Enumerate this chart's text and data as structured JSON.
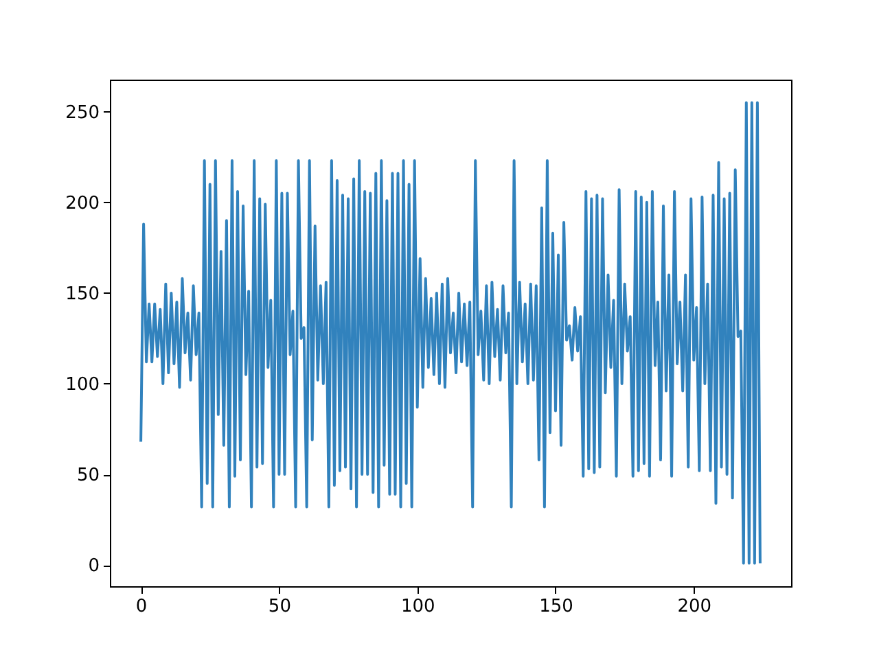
{
  "chart_data": {
    "type": "line",
    "color": "#3182bd",
    "marker": "none",
    "line_style": "solid",
    "xlim": [
      -11.2,
      235.2
    ],
    "ylim": [
      -11.7,
      267.7
    ],
    "xticks": [
      0,
      50,
      100,
      150,
      200
    ],
    "yticks": [
      0,
      50,
      100,
      150,
      200,
      250
    ],
    "x": [
      0,
      1,
      2,
      3,
      4,
      5,
      6,
      7,
      8,
      9,
      10,
      11,
      12,
      13,
      14,
      15,
      16,
      17,
      18,
      19,
      20,
      21,
      22,
      23,
      24,
      25,
      26,
      27,
      28,
      29,
      30,
      31,
      32,
      33,
      34,
      35,
      36,
      37,
      38,
      39,
      40,
      41,
      42,
      43,
      44,
      45,
      46,
      47,
      48,
      49,
      50,
      51,
      52,
      53,
      54,
      55,
      56,
      57,
      58,
      59,
      60,
      61,
      62,
      63,
      64,
      65,
      66,
      67,
      68,
      69,
      70,
      71,
      72,
      73,
      74,
      75,
      76,
      77,
      78,
      79,
      80,
      81,
      82,
      83,
      84,
      85,
      86,
      87,
      88,
      89,
      90,
      91,
      92,
      93,
      94,
      95,
      96,
      97,
      98,
      99,
      100,
      101,
      102,
      103,
      104,
      105,
      106,
      107,
      108,
      109,
      110,
      111,
      112,
      113,
      114,
      115,
      116,
      117,
      118,
      119,
      120,
      121,
      122,
      123,
      124,
      125,
      126,
      127,
      128,
      129,
      130,
      131,
      132,
      133,
      134,
      135,
      136,
      137,
      138,
      139,
      140,
      141,
      142,
      143,
      144,
      145,
      146,
      147,
      148,
      149,
      150,
      151,
      152,
      153,
      154,
      155,
      156,
      157,
      158,
      159,
      160,
      161,
      162,
      163,
      164,
      165,
      166,
      167,
      168,
      169,
      170,
      171,
      172,
      173,
      174,
      175,
      176,
      177,
      178,
      179,
      180,
      181,
      182,
      183,
      184,
      185,
      186,
      187,
      188,
      189,
      190,
      191,
      192,
      193,
      194,
      195,
      196,
      197,
      198,
      199,
      200,
      201,
      202,
      203,
      204,
      205,
      206,
      207,
      208,
      209,
      210,
      211,
      212,
      213,
      214,
      215,
      216,
      217,
      218,
      219,
      220,
      221,
      222,
      223,
      224
    ],
    "values": [
      68,
      188,
      112,
      144,
      112,
      144,
      115,
      141,
      100,
      155,
      106,
      150,
      111,
      145,
      98,
      158,
      117,
      139,
      102,
      154,
      116,
      139,
      32,
      223,
      45,
      210,
      32,
      223,
      83,
      173,
      66,
      190,
      32,
      223,
      49,
      206,
      58,
      198,
      105,
      151,
      32,
      223,
      54,
      202,
      56,
      199,
      109,
      146,
      32,
      223,
      50,
      205,
      50,
      205,
      116,
      140,
      32,
      223,
      125,
      131,
      32,
      223,
      69,
      187,
      102,
      154,
      100,
      156,
      32,
      223,
      44,
      212,
      52,
      204,
      54,
      202,
      42,
      213,
      32,
      223,
      50,
      206,
      50,
      205,
      40,
      216,
      32,
      223,
      55,
      201,
      39,
      216,
      39,
      216,
      32,
      223,
      45,
      210,
      32,
      223,
      87,
      169,
      98,
      158,
      109,
      147,
      105,
      150,
      100,
      155,
      98,
      158,
      117,
      139,
      106,
      150,
      112,
      144,
      110,
      145,
      32,
      223,
      116,
      140,
      102,
      154,
      100,
      156,
      115,
      141,
      102,
      154,
      117,
      139,
      32,
      223,
      100,
      156,
      112,
      144,
      100,
      155,
      102,
      154,
      58,
      197,
      32,
      223,
      73,
      183,
      85,
      171,
      66,
      189,
      124,
      132,
      113,
      142,
      118,
      137,
      49,
      206,
      53,
      202,
      51,
      204,
      54,
      202,
      95,
      160,
      109,
      146,
      49,
      207,
      100,
      155,
      118,
      137,
      49,
      206,
      52,
      203,
      56,
      200,
      49,
      206,
      110,
      145,
      58,
      198,
      96,
      160,
      49,
      206,
      111,
      145,
      96,
      160,
      54,
      202,
      113,
      142,
      52,
      203,
      100,
      155,
      52,
      204,
      34,
      222,
      54,
      202,
      50,
      205,
      37,
      218,
      126,
      129,
      1,
      255,
      1,
      255,
      1,
      255,
      1
    ]
  }
}
